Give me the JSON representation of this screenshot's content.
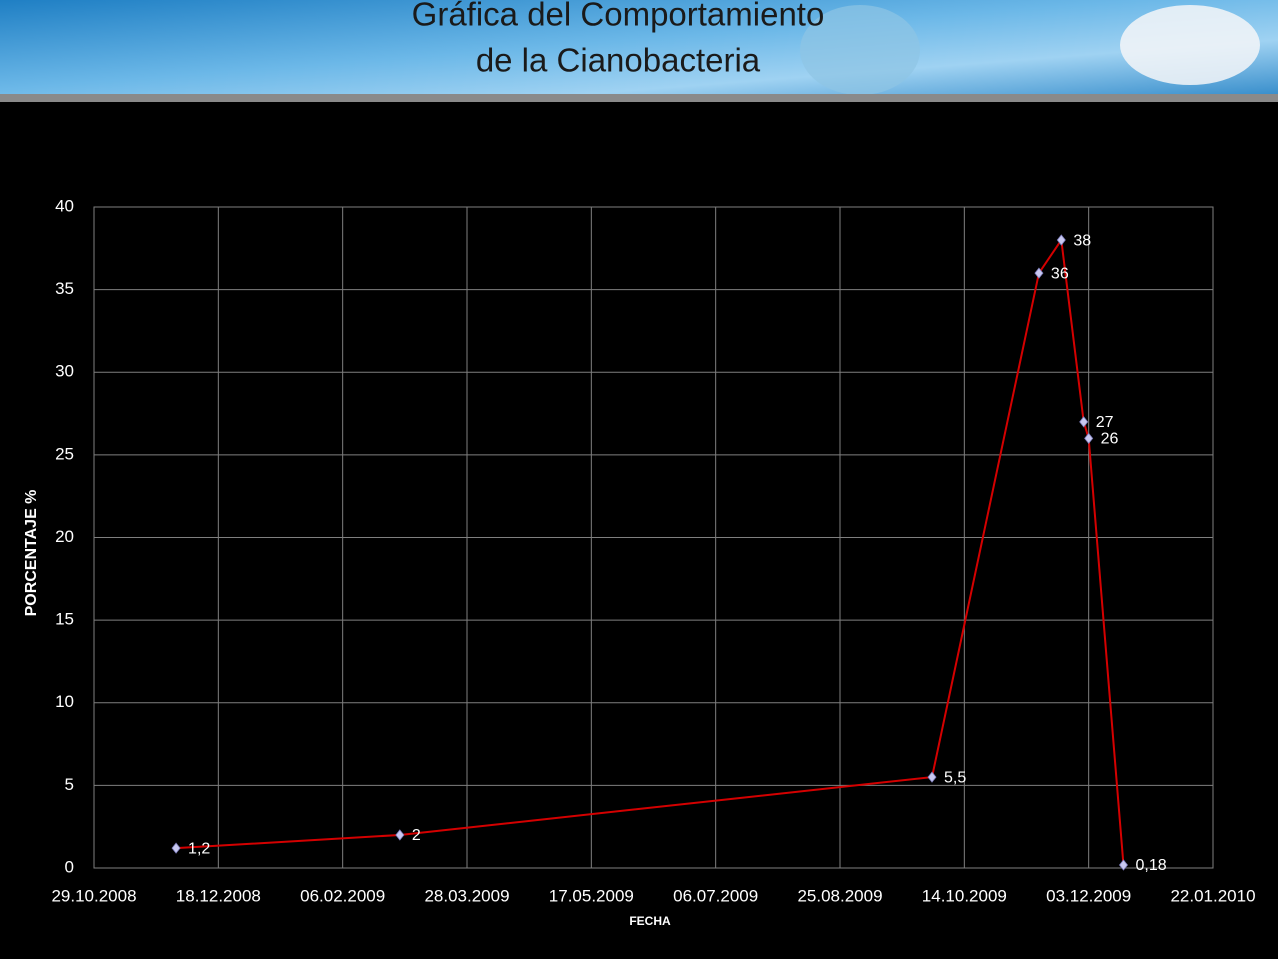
{
  "chart_data": {
    "type": "line",
    "title": [
      "Gráfica del Comportamiento",
      "de la Cianobacteria"
    ],
    "x_label": "FECHA",
    "y_label": "PORCENTAJE %",
    "x": [
      "2008-12-01",
      "2009-03-01",
      "2009-10-01",
      "2009-11-13",
      "2009-11-22",
      "2009-12-01",
      "2009-12-03",
      "2009-12-17"
    ],
    "series": [
      {
        "name": "PORCENTAJE %",
        "color": "#d40000",
        "marker_color": "#c8c8f0",
        "values": [
          1.2,
          2,
          5.5,
          36,
          38,
          27,
          26,
          0.18
        ],
        "value_labels": [
          "1,2",
          "2",
          "5,5",
          "36",
          "38",
          "27",
          "26",
          "0,18"
        ]
      }
    ],
    "xlim": [
      "2008-10-29",
      "2010-01-22"
    ],
    "xticks": [
      {
        "value": "2008-10-29",
        "label": "29.10.2008"
      },
      {
        "value": "2008-12-18",
        "label": "18.12.2008"
      },
      {
        "value": "2009-02-06",
        "label": "06.02.2009"
      },
      {
        "value": "2009-03-28",
        "label": "28.03.2009"
      },
      {
        "value": "2009-05-17",
        "label": "17.05.2009"
      },
      {
        "value": "2009-07-06",
        "label": "06.07.2009"
      },
      {
        "value": "2009-08-25",
        "label": "25.08.2009"
      },
      {
        "value": "2009-10-14",
        "label": "14.10.2009"
      },
      {
        "value": "2009-12-03",
        "label": "03.12.2009"
      },
      {
        "value": "2010-01-22",
        "label": "22.01.2010"
      }
    ],
    "ylim": [
      0,
      40
    ],
    "yticks": [
      0,
      5,
      10,
      15,
      20,
      25,
      30,
      35,
      40
    ],
    "grid": true
  }
}
